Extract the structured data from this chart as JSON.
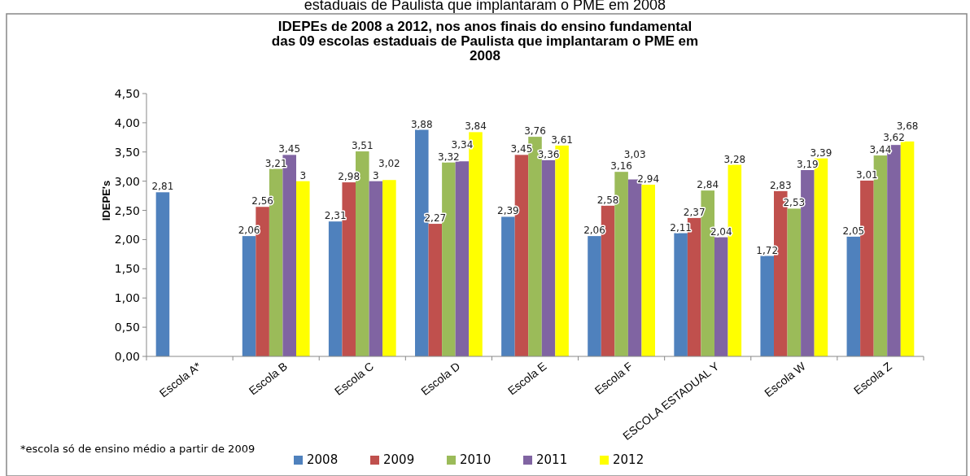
{
  "chart_data": {
    "type": "bar",
    "title": "IDEPEs de 2008 a 2012, nos anos finais do ensino fundamental\ndas  09 escolas estaduais de Paulista que implantaram o PME em\n2008",
    "ylabel": "IDEPE's",
    "annotations": [
      "estaduais de Paulista que implantaram o PME em 2008",
      "*escola  só de ensino médio a partir de 2009"
    ],
    "categories": [
      "Escola A*",
      "Escola B",
      "Escola C",
      "Escola D",
      "Escola E",
      "Escola F",
      "ESCOLA ESTADUAL Y",
      "Escola W",
      "Escola Z"
    ],
    "series": [
      {
        "name": "2008",
        "color": "#4f81bd",
        "values": [
          2.81,
          2.06,
          2.31,
          3.88,
          2.39,
          2.06,
          2.11,
          1.72,
          2.05
        ],
        "value_labels": [
          "2,81",
          "2,06",
          "2,31",
          "3,88",
          "2,39",
          "2,06",
          "2,11",
          "1,72",
          "2,05"
        ]
      },
      {
        "name": "2009",
        "color": "#c0504d",
        "values": [
          null,
          2.56,
          2.98,
          2.27,
          3.45,
          2.58,
          2.37,
          2.83,
          3.01
        ],
        "value_labels": [
          null,
          "2,56",
          "2,98",
          "2,27",
          "3,45",
          "2,58",
          "2,37",
          "2,83",
          "3,01"
        ]
      },
      {
        "name": "2010",
        "color": "#9bbb59",
        "values": [
          null,
          3.21,
          3.51,
          3.32,
          3.76,
          3.16,
          2.84,
          2.53,
          3.44
        ],
        "value_labels": [
          null,
          "3,21",
          "3,51",
          "3,32",
          "3,76",
          "3,16",
          "2,84",
          "2,53",
          "3,44"
        ]
      },
      {
        "name": "2011",
        "color": "#8064a2",
        "values": [
          null,
          3.45,
          3,
          3.34,
          3.36,
          3.03,
          2.04,
          3.19,
          3.62
        ],
        "value_labels": [
          null,
          "3,45",
          "3",
          "3,34",
          "3,36",
          "3,03",
          "2,04",
          "3,19",
          "3,62"
        ]
      },
      {
        "name": "2012",
        "color": "#ffff00",
        "values": [
          null,
          3,
          3.02,
          3.84,
          3.61,
          2.94,
          3.28,
          3.39,
          3.68
        ],
        "value_labels": [
          null,
          "3",
          "3,02",
          "3,84",
          "3,61",
          "2,94",
          "3,28",
          "3,39",
          "3,68"
        ]
      }
    ],
    "ylim": [
      0,
      4.5
    ],
    "yticks": [
      {
        "value": 0,
        "label": "0,00"
      },
      {
        "value": 0.5,
        "label": "0,50"
      },
      {
        "value": 1,
        "label": "1,00"
      },
      {
        "value": 1.5,
        "label": "1,50"
      },
      {
        "value": 2,
        "label": "2,00"
      },
      {
        "value": 2.5,
        "label": "2,50"
      },
      {
        "value": 3,
        "label": "3,00"
      },
      {
        "value": 3.5,
        "label": "3,50"
      },
      {
        "value": 4,
        "label": "4,00"
      },
      {
        "value": 4.5,
        "label": "4,50"
      }
    ],
    "grid": false,
    "legend": "bottom"
  }
}
